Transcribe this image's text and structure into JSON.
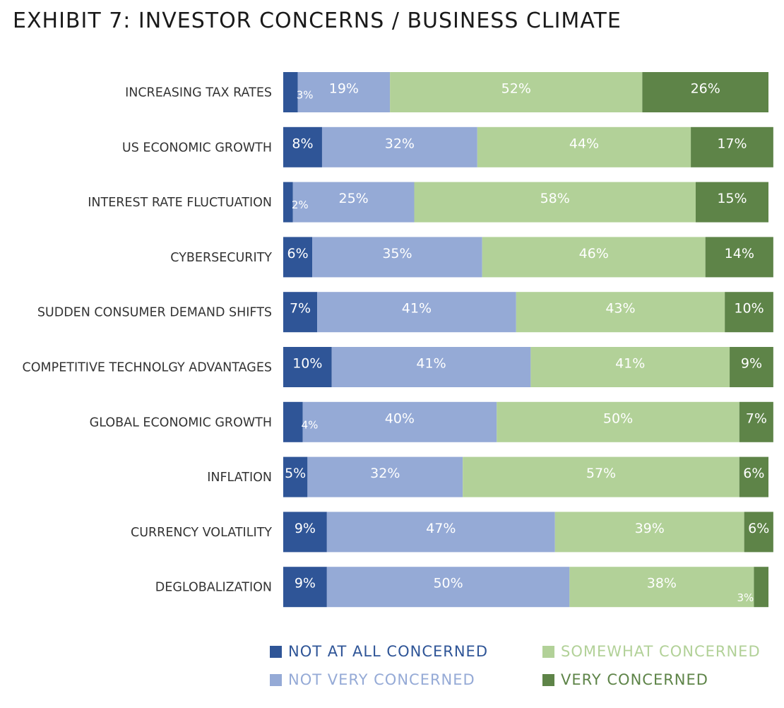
{
  "title": "EXHIBIT 7: INVESTOR CONCERNS / BUSINESS CLIMATE",
  "colors": {
    "not_at_all": "#2f5597",
    "not_very": "#95aad6",
    "somewhat": "#b2d198",
    "very": "#5e8448"
  },
  "chart_data": {
    "type": "bar",
    "orientation": "horizontal",
    "stacked": true,
    "xlim": [
      0,
      100
    ],
    "categories": [
      "INCREASING TAX RATES",
      "US ECONOMIC GROWTH",
      "INTEREST RATE FLUCTUATION",
      "CYBERSECURITY",
      "SUDDEN CONSUMER DEMAND SHIFTS",
      "COMPETITIVE TECHNOLGY ADVANTAGES",
      "GLOBAL ECONOMIC GROWTH",
      "INFLATION",
      "CURRENCY VOLATILITY",
      "DEGLOBALIZATION"
    ],
    "series": [
      {
        "name": "NOT AT ALL CONCERNED",
        "color": "#2f5597",
        "values": [
          3,
          8,
          2,
          6,
          7,
          10,
          4,
          5,
          9,
          9
        ]
      },
      {
        "name": "NOT VERY CONCERNED",
        "color": "#95aad6",
        "values": [
          19,
          32,
          25,
          35,
          41,
          41,
          40,
          32,
          47,
          50
        ]
      },
      {
        "name": "SOMEWHAT CONCERNED",
        "color": "#b2d198",
        "values": [
          52,
          44,
          58,
          46,
          43,
          41,
          50,
          57,
          39,
          38
        ]
      },
      {
        "name": "VERY CONCERNED",
        "color": "#5e8448",
        "values": [
          26,
          17,
          15,
          14,
          10,
          9,
          7,
          6,
          6,
          3
        ]
      }
    ],
    "legend": {
      "position": "bottom",
      "items": [
        {
          "label": "NOT AT ALL CONCERNED",
          "key": "not_at_all"
        },
        {
          "label": "SOMEWHAT CONCERNED",
          "key": "somewhat"
        },
        {
          "label": "NOT VERY CONCERNED",
          "key": "not_very"
        },
        {
          "label": "VERY CONCERNED",
          "key": "very"
        }
      ]
    }
  }
}
